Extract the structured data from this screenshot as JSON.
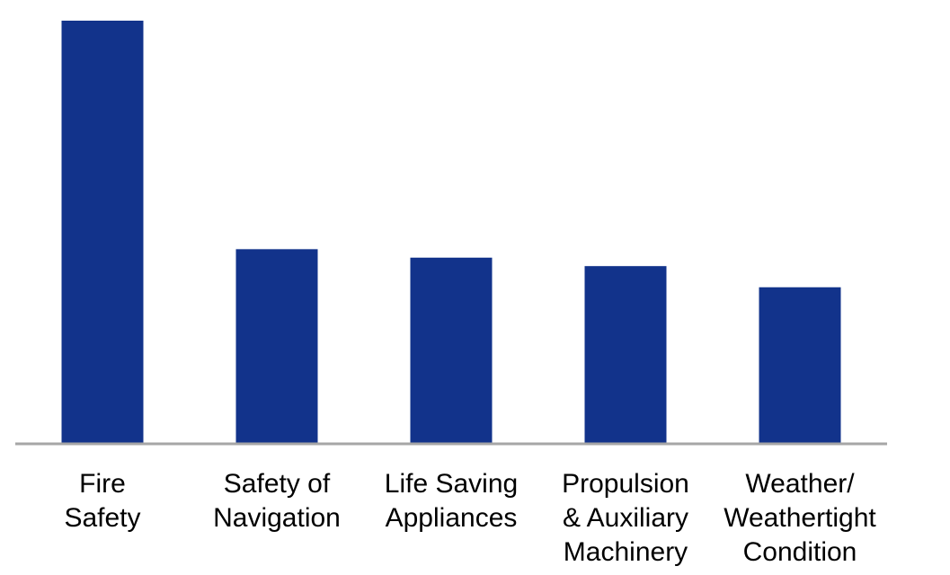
{
  "chart_data": {
    "type": "bar",
    "categories": [
      [
        "Fire",
        "Safety"
      ],
      [
        "Safety of",
        "Navigation"
      ],
      [
        "Life Saving",
        "Appliances"
      ],
      [
        "Propulsion",
        "& Auxiliary",
        "Machinery"
      ],
      [
        "Weather/",
        "Weathertight",
        "Condition"
      ]
    ],
    "values": [
      100,
      46,
      44,
      42,
      37
    ],
    "ylim": [
      0,
      100
    ],
    "title": "",
    "xlabel": "",
    "ylabel": "",
    "grid": false,
    "legend": "none",
    "colors": {
      "bar": "#12338b",
      "axis": "#a6a6a6",
      "text": "#000000"
    }
  }
}
